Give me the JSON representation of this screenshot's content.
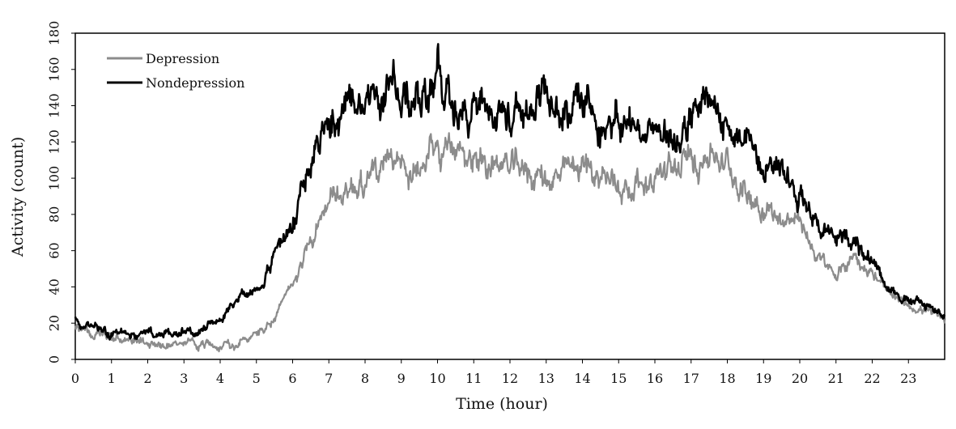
{
  "chart_data": {
    "type": "line",
    "xlabel": "Time (hour)",
    "ylabel": "Activity (count)",
    "xlim": [
      0,
      24
    ],
    "ylim": [
      0,
      180
    ],
    "xticks": [
      0,
      1,
      2,
      3,
      4,
      5,
      6,
      7,
      8,
      9,
      10,
      11,
      12,
      13,
      14,
      15,
      16,
      17,
      18,
      19,
      20,
      21,
      22,
      23
    ],
    "yticks": [
      0,
      20,
      40,
      60,
      80,
      100,
      120,
      140,
      160,
      180
    ],
    "grid": false,
    "legend": "top-left",
    "series": [
      {
        "name": "Depression",
        "color": "#8c8c8c",
        "x": [
          0,
          0.5,
          1,
          1.5,
          2,
          2.5,
          3,
          3.5,
          4,
          4.5,
          5,
          5.5,
          6,
          6.5,
          7,
          7.5,
          8,
          8.5,
          9,
          9.5,
          10,
          10.5,
          11,
          11.5,
          12,
          12.5,
          13,
          13.5,
          14,
          14.5,
          15,
          15.5,
          16,
          16.5,
          17,
          17.5,
          18,
          18.5,
          19,
          19.5,
          20,
          20.5,
          21,
          21.5,
          22,
          22.5,
          23,
          23.5,
          24
        ],
        "y": [
          18,
          14,
          12,
          10,
          9,
          8,
          8,
          8,
          9,
          8,
          14,
          22,
          42,
          68,
          85,
          94,
          100,
          103,
          106,
          108,
          112,
          114,
          112,
          109,
          106,
          104,
          100,
          101,
          107,
          102,
          96,
          97,
          101,
          104,
          109,
          116,
          107,
          93,
          85,
          78,
          76,
          56,
          45,
          58,
          48,
          34,
          30,
          27,
          20
        ]
      },
      {
        "name": "Nondepression",
        "color": "#000000",
        "x": [
          0,
          0.5,
          1,
          1.5,
          2,
          2.5,
          3,
          3.5,
          4,
          4.5,
          5,
          5.5,
          6,
          6.5,
          7,
          7.5,
          8,
          8.5,
          9,
          9.5,
          10,
          10.5,
          11,
          11.5,
          12,
          12.5,
          13,
          13.5,
          14,
          14.5,
          15,
          15.5,
          16,
          16.5,
          17,
          17.5,
          18,
          18.5,
          19,
          19.5,
          20,
          20.5,
          21,
          21.5,
          22,
          22.5,
          23,
          23.5,
          24
        ],
        "y": [
          22,
          18,
          15,
          14,
          13,
          14,
          15,
          17,
          21,
          34,
          37,
          58,
          75,
          108,
          132,
          140,
          143,
          148,
          145,
          144,
          152,
          143,
          144,
          141,
          133,
          131,
          140,
          143,
          141,
          135,
          129,
          128,
          125,
          124,
          131,
          140,
          127,
          118,
          115,
          106,
          95,
          75,
          65,
          68,
          55,
          40,
          32,
          30,
          25
        ]
      }
    ]
  }
}
